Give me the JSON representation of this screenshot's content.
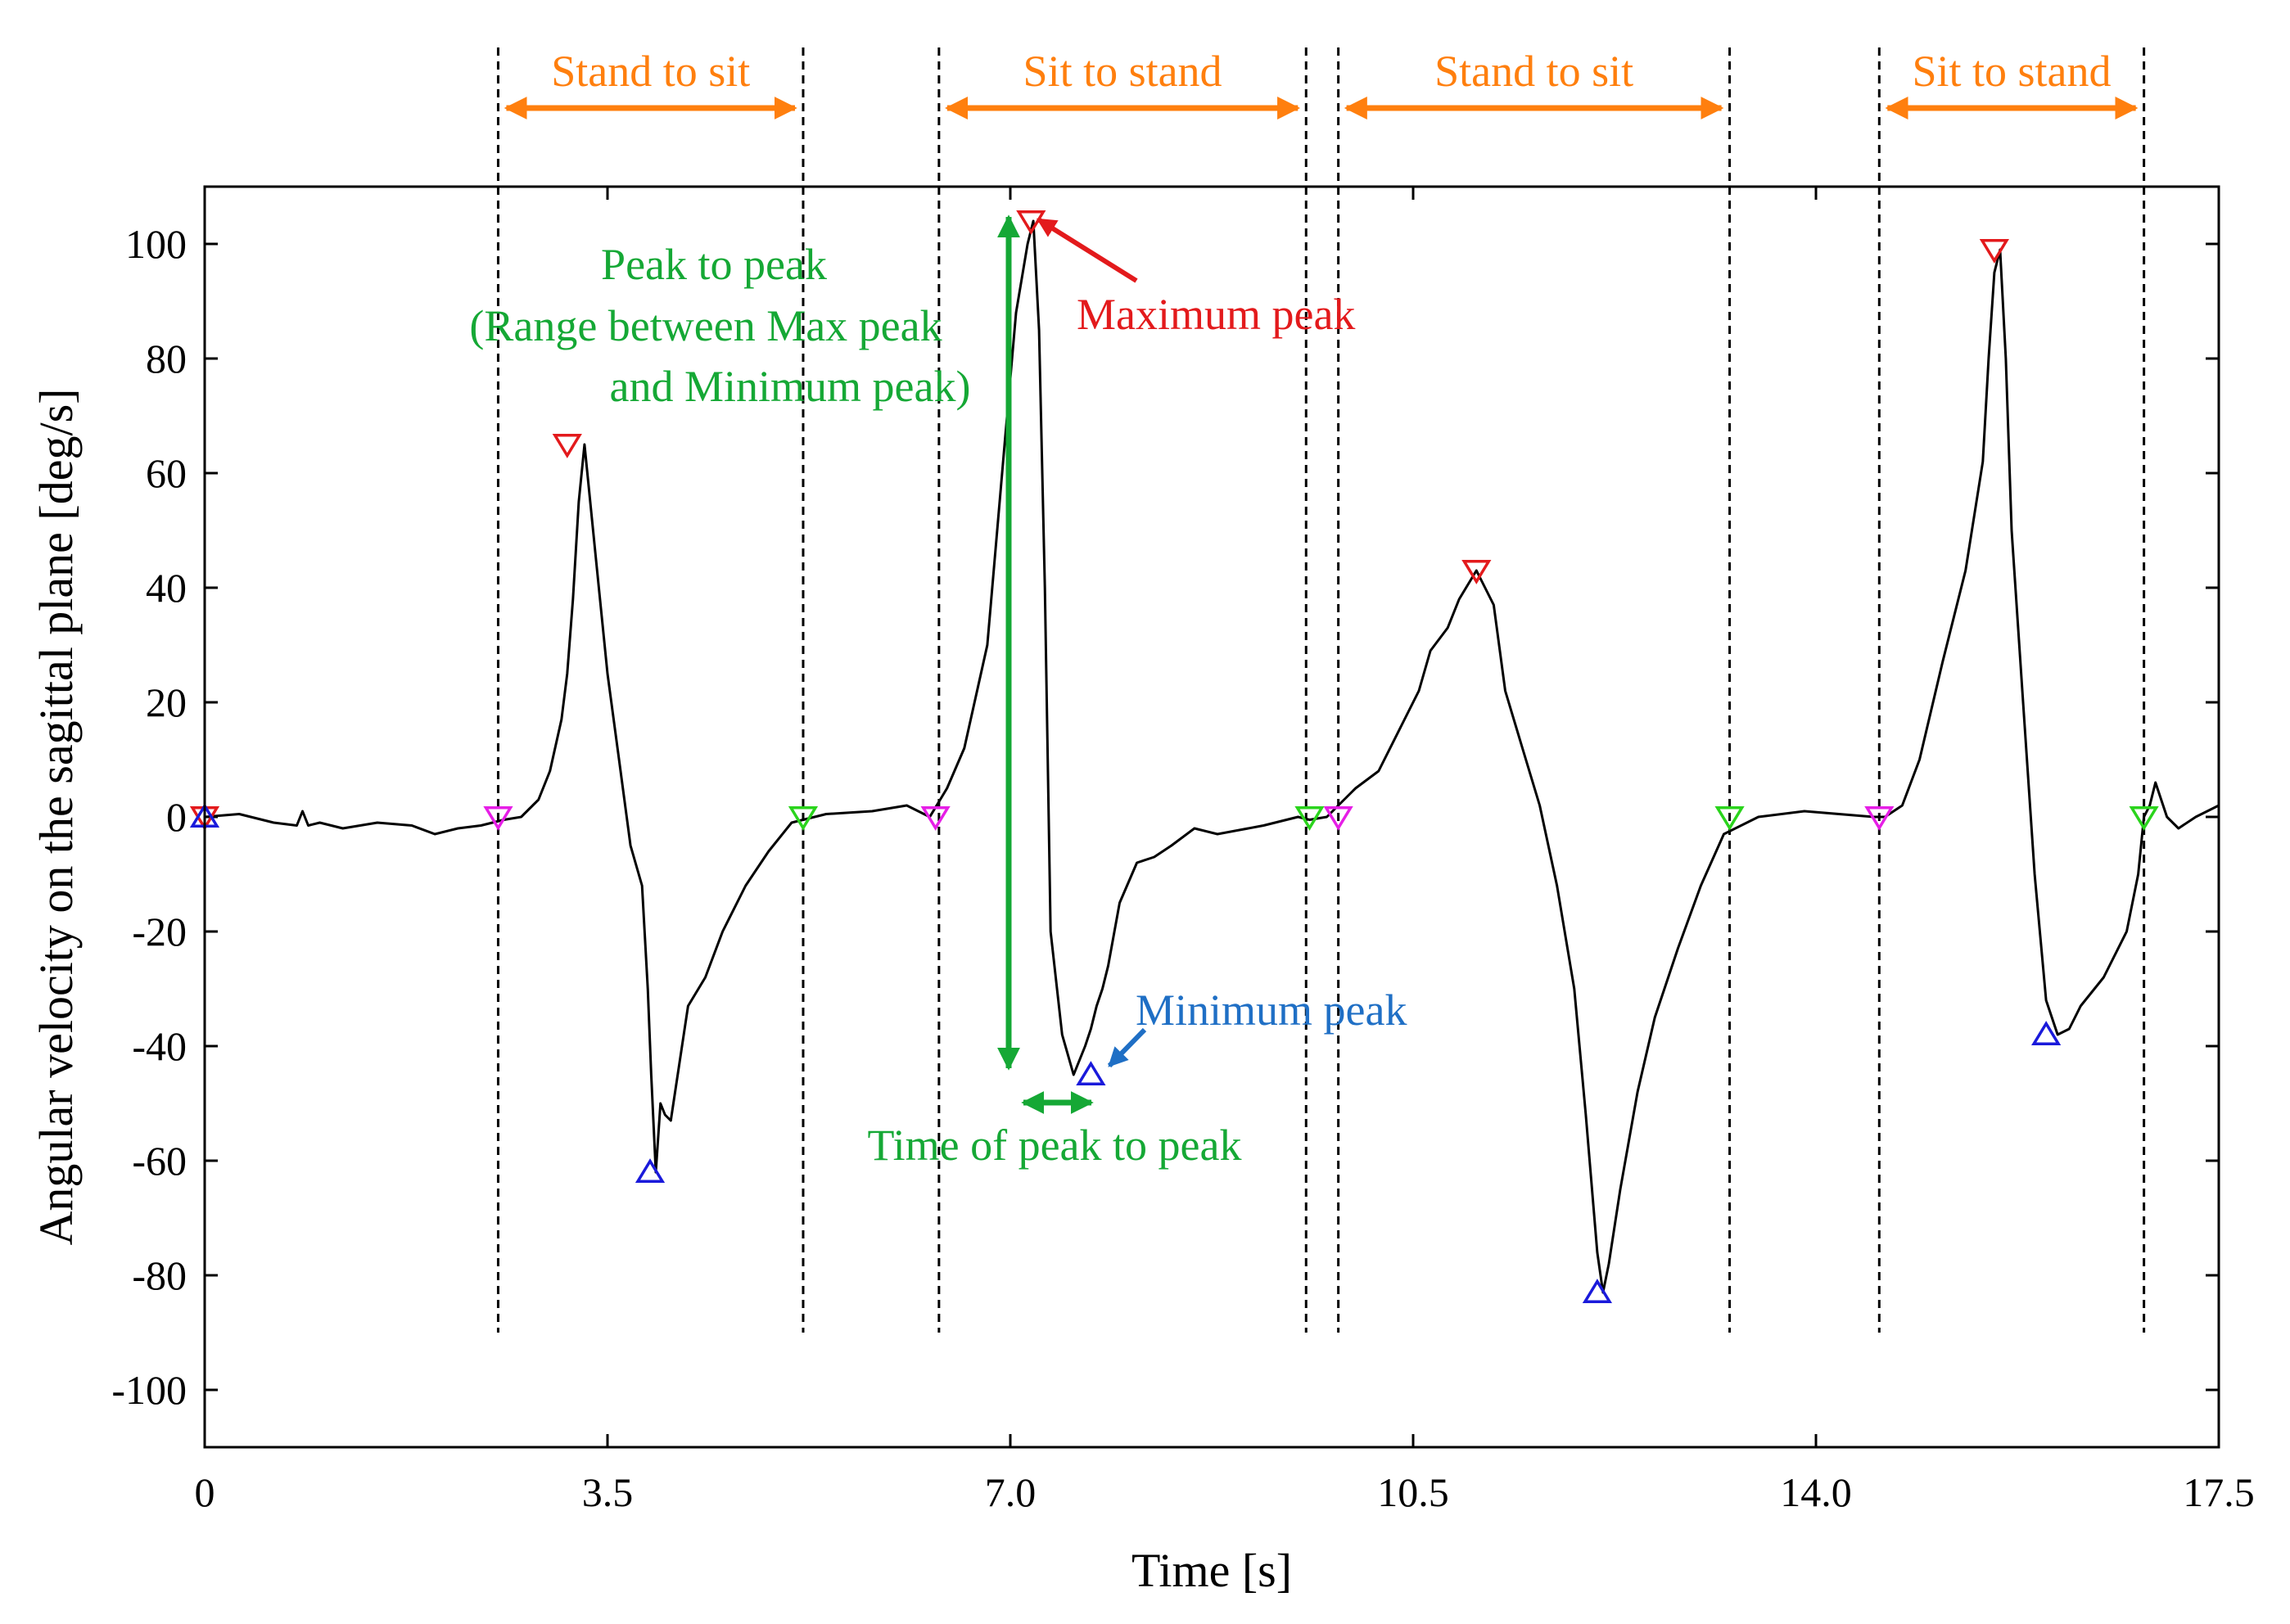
{
  "chart_data": {
    "type": "line",
    "title": "",
    "xlabel": "Time [s]",
    "ylabel": "Angular velocity on the sagittal plane [deg/s]",
    "xlim": [
      0,
      17.5
    ],
    "ylim": [
      -110,
      110
    ],
    "x_ticks": [
      0,
      3.5,
      7.0,
      10.5,
      14.0,
      17.5
    ],
    "x_tick_labels": [
      "0",
      "3.5",
      "7.0",
      "10.5",
      "14.0",
      "17.5"
    ],
    "y_ticks": [
      100,
      80,
      60,
      40,
      20,
      0,
      -20,
      -40,
      -60,
      -80,
      -100
    ],
    "y_tick_labels": [
      "100",
      "80",
      "60",
      "40",
      "20",
      "0",
      "-20",
      "-40",
      "-60",
      "-80",
      "-100"
    ],
    "grid": false,
    "series": [
      {
        "name": "Angular velocity",
        "color": "#000000",
        "x": [
          0,
          0.3,
          0.6,
          0.8,
          0.85,
          0.9,
          1.0,
          1.2,
          1.5,
          1.8,
          2.0,
          2.2,
          2.4,
          2.6,
          2.75,
          2.9,
          3.0,
          3.1,
          3.15,
          3.2,
          3.25,
          3.3,
          3.4,
          3.5,
          3.6,
          3.7,
          3.8,
          3.85,
          3.88,
          3.92,
          3.96,
          4.0,
          4.05,
          4.2,
          4.35,
          4.5,
          4.7,
          4.9,
          5.1,
          5.4,
          5.8,
          6.1,
          6.3,
          6.45,
          6.6,
          6.8,
          6.95,
          7.05,
          7.15,
          7.2,
          7.25,
          7.3,
          7.35,
          7.45,
          7.55,
          7.65,
          7.7,
          7.75,
          7.8,
          7.85,
          7.95,
          8.1,
          8.25,
          8.4,
          8.6,
          8.8,
          9.2,
          9.5,
          9.6,
          9.75,
          9.85,
          10.0,
          10.2,
          10.4,
          10.55,
          10.65,
          10.8,
          10.9,
          11.05,
          11.2,
          11.3,
          11.45,
          11.6,
          11.75,
          11.9,
          12.0,
          12.1,
          12.15,
          12.2,
          12.3,
          12.45,
          12.6,
          12.8,
          13.0,
          13.2,
          13.5,
          13.9,
          14.2,
          14.5,
          14.6,
          14.75,
          14.9,
          15.1,
          15.3,
          15.45,
          15.5,
          15.55,
          15.6,
          15.65,
          15.7,
          15.8,
          15.9,
          16.0,
          16.1,
          16.2,
          16.3,
          16.5,
          16.7,
          16.8,
          16.85,
          16.9,
          16.95,
          17.05,
          17.15,
          17.3,
          17.5
        ],
        "y": [
          0,
          0.5,
          -1,
          -1.5,
          1,
          -1.5,
          -1,
          -2,
          -1,
          -1.5,
          -3,
          -2,
          -1.5,
          -0.5,
          0,
          3,
          8,
          17,
          25,
          38,
          55,
          65,
          45,
          25,
          10,
          -5,
          -12,
          -30,
          -45,
          -62,
          -50,
          -52,
          -53,
          -33,
          -28,
          -20,
          -12,
          -6,
          -1,
          0.5,
          1,
          2,
          0,
          5,
          12,
          30,
          65,
          88,
          100,
          104,
          85,
          40,
          -20,
          -38,
          -45,
          -40,
          -37,
          -33,
          -30,
          -26,
          -15,
          -8,
          -7,
          -5,
          -2,
          -3,
          -1.5,
          0,
          -0.5,
          0,
          2,
          5,
          8,
          16,
          22,
          29,
          33,
          38,
          43,
          37,
          22,
          12,
          2,
          -12,
          -30,
          -52,
          -76,
          -83,
          -78,
          -65,
          -48,
          -35,
          -23,
          -12,
          -3,
          0,
          1,
          0.5,
          0,
          0,
          2,
          10,
          27,
          43,
          62,
          80,
          95,
          99,
          80,
          50,
          20,
          -10,
          -32,
          -38,
          -37,
          -33,
          -28,
          -20,
          -10,
          0,
          2,
          6,
          0,
          -2,
          0,
          2
        ]
      }
    ],
    "markers": {
      "max_peaks": {
        "color": "#e31a1c",
        "symbol": "down-triangle",
        "x": [
          3.15,
          7.18,
          11.05,
          15.55
        ],
        "y": [
          65,
          104,
          43,
          99
        ]
      },
      "min_peaks": {
        "color": "#1a1adb",
        "symbol": "up-triangle",
        "x": [
          3.87,
          7.7,
          12.1,
          16.0
        ],
        "y": [
          -62,
          -45,
          -83,
          -38
        ]
      },
      "phase_starts": {
        "color": "#e61ee6",
        "symbol": "down-triangle",
        "x": [
          2.55,
          6.35,
          9.85,
          14.55
        ],
        "y": [
          0,
          0,
          0,
          0
        ]
      },
      "phase_ends": {
        "color": "#2ad41c",
        "symbol": "down-triangle",
        "x": [
          5.2,
          9.6,
          13.25,
          16.85
        ],
        "y": [
          0,
          0,
          0,
          0
        ]
      },
      "origin_markers": [
        {
          "color": "#e31a1c",
          "symbol": "down-triangle",
          "x": 0,
          "y": 0
        },
        {
          "color": "#1a1adb",
          "symbol": "up-triangle",
          "x": 0,
          "y": 0
        }
      ]
    },
    "phases": [
      {
        "label": "Stand to sit",
        "start": 2.55,
        "end": 5.2
      },
      {
        "label": "Sit to stand",
        "start": 6.38,
        "end": 9.57
      },
      {
        "label": "Stand to sit",
        "start": 9.85,
        "end": 13.25
      },
      {
        "label": "Sit to stand",
        "start": 14.55,
        "end": 16.85
      }
    ],
    "annotations": {
      "peak_to_peak_lines": [
        "Peak to peak",
        "(Range between Max peak",
        "and Minimum peak)"
      ],
      "maximum_peak": "Maximum peak",
      "minimum_peak": "Minimum peak",
      "time_peak_to_peak": "Time of peak to peak"
    }
  }
}
